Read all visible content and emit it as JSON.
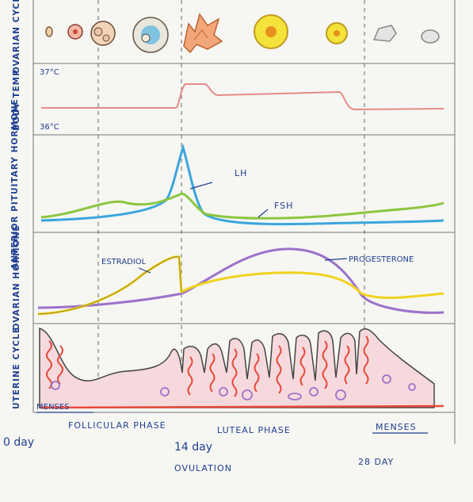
{
  "rows": {
    "ovarian_cycle": "OVARIAN CYCLE",
    "body_temp": "BODY TEMP",
    "pituitary": "ANTERIOR PITUITARY HORMONE",
    "ovarian_hormone": "OVARIAN HORMONE",
    "uterine": "UTERINE CYCLE"
  },
  "temp": {
    "high": "37°C",
    "low": "36°C"
  },
  "hormones": {
    "lh": "LH",
    "fsh": "FSH",
    "estradiol": "ESTRADIOL",
    "progesterone": "PROGESTERONE"
  },
  "phases": {
    "menses_start": "MENSES",
    "follicular": "FOLLICULAR PHASE",
    "luteal": "LUTEAL PHASE",
    "menses_end": "MENSES"
  },
  "days": {
    "start": "0 day",
    "mid": "14 day",
    "end": "28 DAY"
  },
  "ovulation": "OVULATION",
  "colors": {
    "ink": "#1f3f8f",
    "temp": "#e58c86",
    "lh": "#3aa6dc",
    "fsh": "#8cc63f",
    "estradiol": "#f0d21e",
    "progesterone": "#9b72c8",
    "uterine_fill": "#f6d9dd",
    "uterine_red": "#e84a3c"
  }
}
